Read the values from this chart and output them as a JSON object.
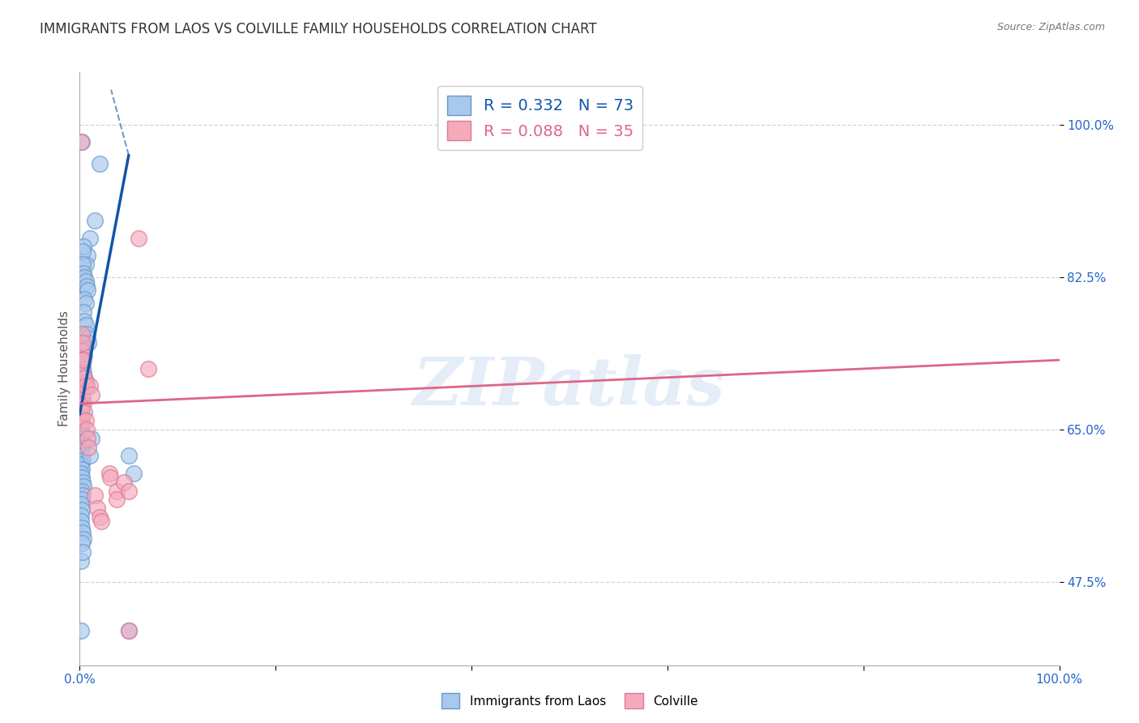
{
  "title": "IMMIGRANTS FROM LAOS VS COLVILLE FAMILY HOUSEHOLDS CORRELATION CHART",
  "source": "Source: ZipAtlas.com",
  "ylabel": "Family Households",
  "blue_r": 0.332,
  "blue_n": 73,
  "pink_r": 0.088,
  "pink_n": 35,
  "blue_color": "#A8C8EC",
  "pink_color": "#F4AABB",
  "blue_edge_color": "#6699CC",
  "pink_edge_color": "#DD7799",
  "blue_line_color": "#1155AA",
  "pink_line_color": "#DD6688",
  "blue_scatter": [
    [
      0.002,
      0.98
    ],
    [
      0.02,
      0.955
    ],
    [
      0.015,
      0.89
    ],
    [
      0.01,
      0.87
    ],
    [
      0.008,
      0.85
    ],
    [
      0.006,
      0.84
    ],
    [
      0.004,
      0.86
    ],
    [
      0.003,
      0.855
    ],
    [
      0.003,
      0.84
    ],
    [
      0.004,
      0.83
    ],
    [
      0.005,
      0.825
    ],
    [
      0.006,
      0.82
    ],
    [
      0.007,
      0.815
    ],
    [
      0.008,
      0.81
    ],
    [
      0.005,
      0.8
    ],
    [
      0.006,
      0.795
    ],
    [
      0.004,
      0.785
    ],
    [
      0.005,
      0.775
    ],
    [
      0.006,
      0.77
    ],
    [
      0.007,
      0.76
    ],
    [
      0.008,
      0.755
    ],
    [
      0.009,
      0.75
    ],
    [
      0.003,
      0.745
    ],
    [
      0.004,
      0.74
    ],
    [
      0.005,
      0.735
    ],
    [
      0.002,
      0.73
    ],
    [
      0.003,
      0.725
    ],
    [
      0.003,
      0.72
    ],
    [
      0.004,
      0.715
    ],
    [
      0.005,
      0.71
    ],
    [
      0.006,
      0.705
    ],
    [
      0.007,
      0.7
    ],
    [
      0.001,
      0.695
    ],
    [
      0.002,
      0.69
    ],
    [
      0.003,
      0.685
    ],
    [
      0.002,
      0.68
    ],
    [
      0.001,
      0.675
    ],
    [
      0.002,
      0.67
    ],
    [
      0.001,
      0.665
    ],
    [
      0.002,
      0.658
    ],
    [
      0.001,
      0.652
    ],
    [
      0.002,
      0.645
    ],
    [
      0.001,
      0.64
    ],
    [
      0.003,
      0.635
    ],
    [
      0.002,
      0.63
    ],
    [
      0.001,
      0.625
    ],
    [
      0.002,
      0.62
    ],
    [
      0.003,
      0.615
    ],
    [
      0.001,
      0.61
    ],
    [
      0.002,
      0.605
    ],
    [
      0.001,
      0.6
    ],
    [
      0.002,
      0.595
    ],
    [
      0.003,
      0.59
    ],
    [
      0.004,
      0.585
    ],
    [
      0.002,
      0.58
    ],
    [
      0.003,
      0.575
    ],
    [
      0.002,
      0.57
    ],
    [
      0.001,
      0.565
    ],
    [
      0.002,
      0.558
    ],
    [
      0.001,
      0.552
    ],
    [
      0.001,
      0.545
    ],
    [
      0.002,
      0.538
    ],
    [
      0.003,
      0.532
    ],
    [
      0.004,
      0.525
    ],
    [
      0.002,
      0.52
    ],
    [
      0.01,
      0.62
    ],
    [
      0.012,
      0.64
    ],
    [
      0.001,
      0.5
    ],
    [
      0.003,
      0.51
    ],
    [
      0.05,
      0.62
    ],
    [
      0.001,
      0.42
    ],
    [
      0.05,
      0.42
    ],
    [
      0.055,
      0.6
    ]
  ],
  "pink_scatter": [
    [
      0.001,
      0.98
    ],
    [
      0.002,
      0.76
    ],
    [
      0.001,
      0.74
    ],
    [
      0.002,
      0.73
    ],
    [
      0.001,
      0.715
    ],
    [
      0.003,
      0.7
    ],
    [
      0.003,
      0.69
    ],
    [
      0.002,
      0.68
    ],
    [
      0.001,
      0.67
    ],
    [
      0.002,
      0.66
    ],
    [
      0.003,
      0.75
    ],
    [
      0.004,
      0.73
    ],
    [
      0.005,
      0.71
    ],
    [
      0.006,
      0.7
    ],
    [
      0.004,
      0.68
    ],
    [
      0.005,
      0.67
    ],
    [
      0.006,
      0.66
    ],
    [
      0.007,
      0.65
    ],
    [
      0.008,
      0.64
    ],
    [
      0.009,
      0.63
    ],
    [
      0.01,
      0.7
    ],
    [
      0.012,
      0.69
    ],
    [
      0.015,
      0.575
    ],
    [
      0.018,
      0.56
    ],
    [
      0.02,
      0.55
    ],
    [
      0.022,
      0.545
    ],
    [
      0.03,
      0.6
    ],
    [
      0.031,
      0.595
    ],
    [
      0.038,
      0.58
    ],
    [
      0.038,
      0.57
    ],
    [
      0.045,
      0.59
    ],
    [
      0.05,
      0.58
    ],
    [
      0.06,
      0.87
    ],
    [
      0.07,
      0.72
    ],
    [
      0.05,
      0.42
    ]
  ],
  "background_color": "#FFFFFF",
  "grid_color": "#CCCCCC",
  "watermark": "ZIPatlas",
  "title_fontsize": 12,
  "axis_label_fontsize": 11,
  "xlim": [
    0.0,
    1.0
  ],
  "ylim": [
    0.38,
    1.06
  ],
  "y_ticks": [
    0.475,
    0.65,
    0.825,
    1.0
  ],
  "y_tick_labels": [
    "47.5%",
    "65.0%",
    "82.5%",
    "100.0%"
  ],
  "x_ticks": [
    0.0,
    0.2,
    0.4,
    0.6,
    0.8,
    1.0
  ],
  "blue_line_x": [
    0.0,
    0.05
  ],
  "blue_line_y": [
    0.668,
    0.965
  ],
  "pink_line_x": [
    0.0,
    1.0
  ],
  "pink_line_y": [
    0.68,
    0.73
  ]
}
